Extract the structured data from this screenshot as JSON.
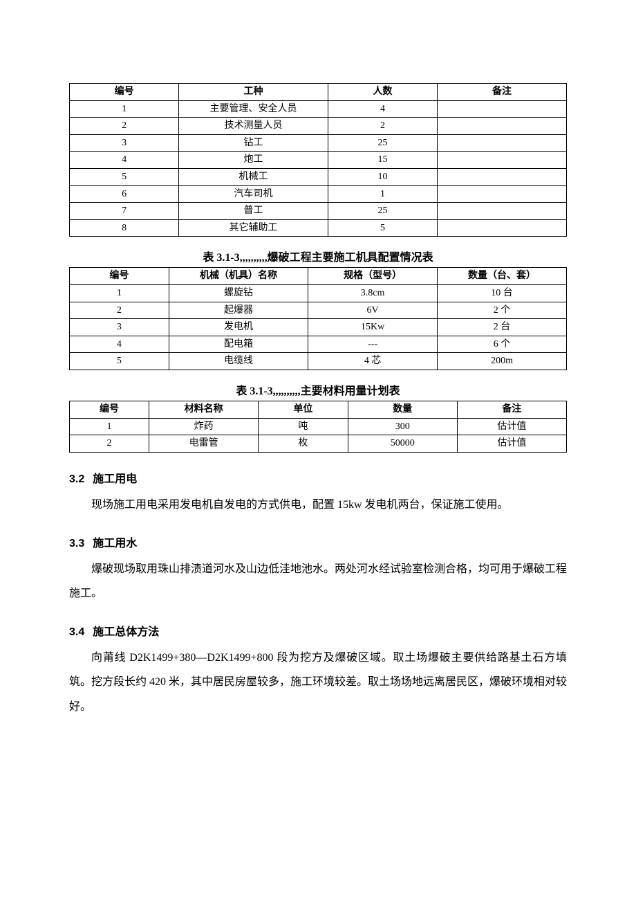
{
  "table1": {
    "columns": [
      "编号",
      "工种",
      "人数",
      "备注"
    ],
    "rows": [
      [
        "1",
        "主要管理、安全人员",
        "4",
        ""
      ],
      [
        "2",
        "技术测量人员",
        "2",
        ""
      ],
      [
        "3",
        "钻工",
        "25",
        ""
      ],
      [
        "4",
        "炮工",
        "15",
        ""
      ],
      [
        "5",
        "机械工",
        "10",
        ""
      ],
      [
        "6",
        "汽车司机",
        "1",
        ""
      ],
      [
        "7",
        "普工",
        "25",
        ""
      ],
      [
        "8",
        "其它辅助工",
        "5",
        ""
      ]
    ]
  },
  "caption2": "表 3.1-3,,,,,,,,,,爆破工程主要施工机具配置情况表",
  "table2": {
    "columns": [
      "编号",
      "机械（机具）名称",
      "规格（型号）",
      "数量（台、套）"
    ],
    "rows": [
      [
        "1",
        "螺旋钻",
        "3.8cm",
        "10 台"
      ],
      [
        "2",
        "起爆器",
        "6V",
        "2 个"
      ],
      [
        "3",
        "发电机",
        "15Kw",
        "2 台"
      ],
      [
        "4",
        "配电箱",
        "---",
        "6 个"
      ],
      [
        "5",
        "电缆线",
        "4 芯",
        "200m"
      ]
    ]
  },
  "caption3": "表 3.1-3,,,,,,,,,,主要材料用量计划表",
  "table3": {
    "columns": [
      "编号",
      "材料名称",
      "单位",
      "数量",
      "备注"
    ],
    "rows": [
      [
        "1",
        "炸药",
        "吨",
        "300",
        "估计值"
      ],
      [
        "2",
        "电雷管",
        "枚",
        "50000",
        "估计值"
      ]
    ]
  },
  "sections": {
    "s32": {
      "num": "3.2",
      "title": "施工用电"
    },
    "p32": "现场施工用电采用发电机自发电的方式供电，配置 15kw 发电机两台，保证施工使用。",
    "s33": {
      "num": "3.3",
      "title": "施工用水"
    },
    "p33": "爆破现场取用珠山排渍道河水及山边低洼地池水。两处河水经试验室检测合格，均可用于爆破工程施工。",
    "s34": {
      "num": "3.4",
      "title": "施工总体方法"
    },
    "p34": "向莆线 D2K1499+380—D2K1499+800 段为挖方及爆破区域。取土场爆破主要供给路基土石方填筑。挖方段长约 420 米，其中居民房屋较多，施工环境较差。取土场场地远离居民区，爆破环境相对较好。"
  }
}
